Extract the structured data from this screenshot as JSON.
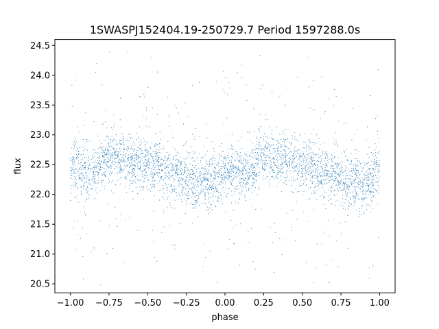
{
  "chart_data": {
    "type": "scatter",
    "title": "1SWASPJ152404.19-250729.7 Period 1597288.0s",
    "xlabel": "phase",
    "ylabel": "flux",
    "xlim": [
      -1.1,
      1.1
    ],
    "ylim": [
      20.35,
      24.6
    ],
    "xticks": [
      -1.0,
      -0.75,
      -0.5,
      -0.25,
      0.0,
      0.25,
      0.5,
      0.75,
      1.0
    ],
    "xtick_labels": [
      "−1.00",
      "−0.75",
      "−0.50",
      "−0.25",
      "0.00",
      "0.25",
      "0.50",
      "0.75",
      "1.00"
    ],
    "yticks": [
      20.5,
      21.0,
      21.5,
      22.0,
      22.5,
      23.0,
      23.5,
      24.0,
      24.5
    ],
    "ytick_labels": [
      "20.5",
      "21.0",
      "21.5",
      "22.0",
      "22.5",
      "23.0",
      "23.5",
      "24.0",
      "24.5"
    ],
    "grid": false,
    "legend": "none",
    "point_color": "#1f77b4",
    "series": [
      {
        "x": [
          -1.0,
          -0.95,
          -0.9,
          -0.85,
          -0.8,
          -0.75,
          -0.7,
          -0.65,
          -0.6,
          -0.55,
          -0.5,
          -0.45,
          -0.4,
          -0.35,
          -0.3,
          -0.25,
          -0.2,
          -0.15,
          -0.1,
          -0.05,
          0.0,
          0.05,
          0.1,
          0.15,
          0.2,
          0.25,
          0.3,
          0.35,
          0.4,
          0.45,
          0.5,
          0.55,
          0.6,
          0.65,
          0.7,
          0.75,
          0.8,
          0.85,
          0.9,
          0.95,
          1.0
        ],
        "y": [
          22.45,
          22.4,
          22.35,
          22.35,
          22.5,
          22.65,
          22.65,
          22.6,
          22.55,
          22.55,
          22.5,
          22.5,
          22.4,
          22.35,
          22.3,
          22.25,
          22.2,
          22.2,
          22.15,
          22.25,
          22.45,
          22.4,
          22.35,
          22.35,
          22.5,
          22.65,
          22.65,
          22.6,
          22.55,
          22.55,
          22.5,
          22.5,
          22.4,
          22.35,
          22.3,
          22.25,
          22.2,
          22.2,
          22.15,
          22.25,
          22.45
        ]
      }
    ]
  }
}
